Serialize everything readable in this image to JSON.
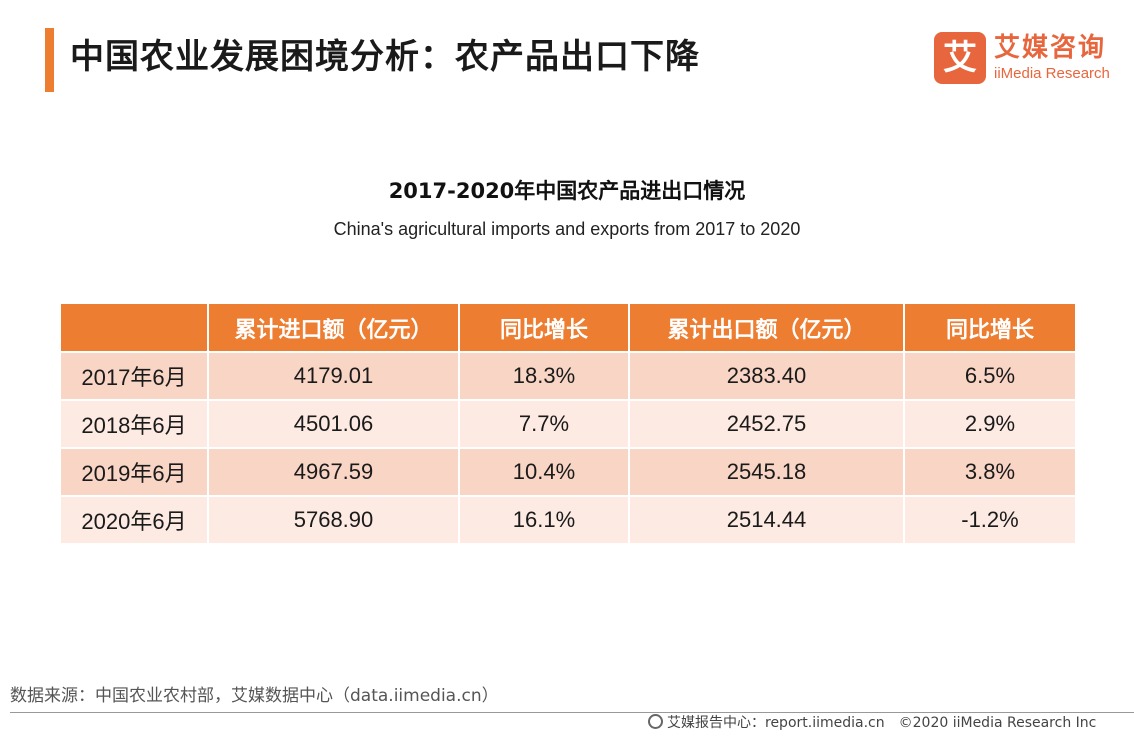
{
  "header": {
    "title": "中国农业发展困境分析：农产品出口下降",
    "logo_mark": "艾",
    "logo_cn": "艾媒咨询",
    "logo_en": "iiMedia Research"
  },
  "colors": {
    "accent": "#ED7D31",
    "row_odd": "#F8D5C5",
    "row_even": "#FCEAE3"
  },
  "chart_data": {
    "type": "table",
    "title": "2017-2020年中国农产品进出口情况",
    "subtitle": "China's agricultural imports and exports from 2017 to 2020",
    "columns": [
      "",
      "累计进口额（亿元）",
      "同比增长",
      "累计出口额（亿元）",
      "同比增长"
    ],
    "rows": [
      [
        "2017年6月",
        "4179.01",
        "18.3%",
        "2383.40",
        "6.5%"
      ],
      [
        "2018年6月",
        "4501.06",
        "7.7%",
        "2452.75",
        "2.9%"
      ],
      [
        "2019年6月",
        "4967.59",
        "10.4%",
        "2545.18",
        "3.8%"
      ],
      [
        "2020年6月",
        "5768.90",
        "16.1%",
        "2514.44",
        "-1.2%"
      ]
    ]
  },
  "footer": {
    "source": "数据来源：中国农业农村部，艾媒数据中心（data.iimedia.cn）",
    "report_center": "艾媒报告中心：report.iimedia.cn",
    "copyright": "©2020  iiMedia Research  Inc"
  }
}
